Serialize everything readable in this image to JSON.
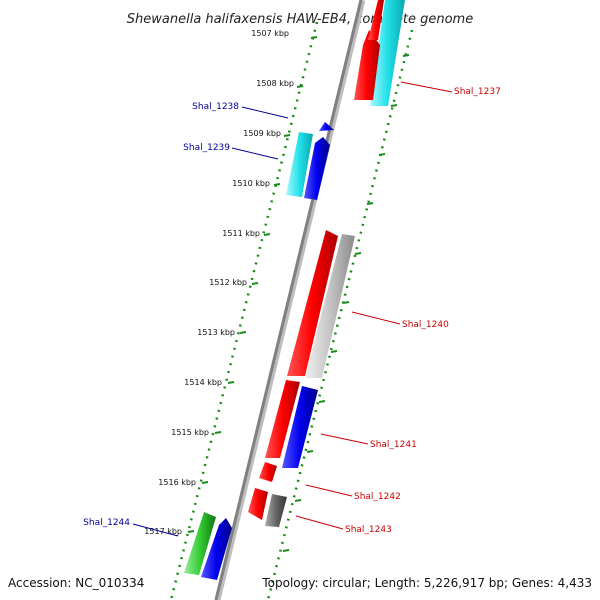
{
  "title": "Shewanella halifaxensis HAW-EB4, complete genome",
  "footer": {
    "accession": "Accession: NC_010334",
    "summary": "Topology: circular; Length: 5,226,917 bp; Genes: 4,433"
  },
  "kbp_ticks": [
    "1507 kbp",
    "1508 kbp",
    "1509 kbp",
    "1510 kbp",
    "1511 kbp",
    "1512 kbp",
    "1513 kbp",
    "1514 kbp",
    "1515 kbp",
    "1516 kbp",
    "1517 kbp"
  ],
  "genes": [
    {
      "name": "Shal_1237",
      "color": "#cc0000"
    },
    {
      "name": "Shal_1238",
      "color": "#000099"
    },
    {
      "name": "Shal_1239",
      "color": "#000099"
    },
    {
      "name": "Shal_1240",
      "color": "#cc0000"
    },
    {
      "name": "Shal_1241",
      "color": "#cc0000"
    },
    {
      "name": "Shal_1242",
      "color": "#cc0000"
    },
    {
      "name": "Shal_1243",
      "color": "#cc0000"
    },
    {
      "name": "Shal_1244",
      "color": "#000099"
    }
  ],
  "colors": {
    "backbone": "#888888",
    "tick_ruler": "#1a8a1a",
    "feature_red": "#ff0000",
    "feature_cyan": "#22e0e8",
    "feature_blue": "#0000ee",
    "feature_grey": "#c0c0c0",
    "feature_darkgrey": "#666666",
    "feature_green": "#33cc33"
  }
}
